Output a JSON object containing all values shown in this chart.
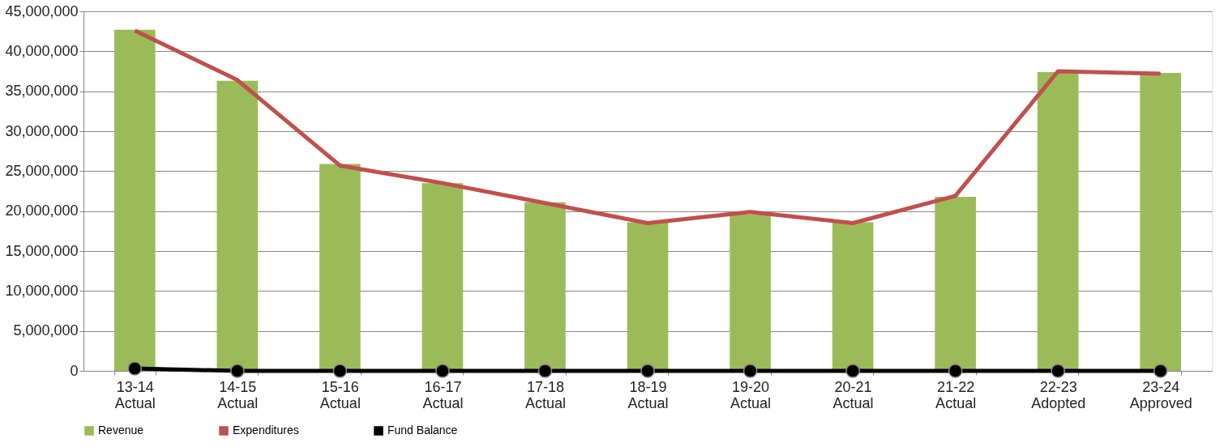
{
  "chart_data": {
    "type": "bar",
    "categories": [
      "13-14\nActual",
      "14-15\nActual",
      "15-16\nActual",
      "16-17\nActual",
      "17-18\nActual",
      "18-19\nActual",
      "19-20\nActual",
      "20-21\nActual",
      "21-22\nActual",
      "22-23\nAdopted",
      "23-24\nApproved"
    ],
    "series": [
      {
        "name": "Revenue",
        "color": "#9bbb59",
        "values": [
          42700000,
          36300000,
          25900000,
          23500000,
          21100000,
          18600000,
          19600000,
          18600000,
          21800000,
          37400000,
          37300000
        ]
      },
      {
        "name": "Expenditures",
        "type": "line",
        "color": "#c0504d",
        "values": [
          42600000,
          36400000,
          25700000,
          23500000,
          21000000,
          18500000,
          19900000,
          18500000,
          21900000,
          37500000,
          37200000
        ]
      },
      {
        "name": "Fund Balance",
        "type": "line",
        "color": "#000000",
        "marker": "circle",
        "values": [
          300000,
          0,
          0,
          0,
          0,
          0,
          0,
          0,
          0,
          0,
          0
        ]
      }
    ],
    "ylim": [
      0,
      45000000
    ],
    "yticks": [
      0,
      {
        "value": 5000000,
        "label": "5,000,000"
      },
      {
        "value": 10000000,
        "label": "10,000,000"
      },
      {
        "value": 15000000,
        "label": "15,000,000"
      },
      {
        "value": 20000000,
        "label": "20,000,000"
      },
      {
        "value": 25000000,
        "label": "25,000,000"
      },
      {
        "value": 30000000,
        "label": "30,000,000"
      },
      {
        "value": 35000000,
        "label": "35,000,000"
      },
      {
        "value": 40000000,
        "label": "40,000,000"
      },
      {
        "value": 45000000,
        "label": "45,000,000"
      }
    ],
    "grid": "y",
    "legend": "bottom"
  }
}
